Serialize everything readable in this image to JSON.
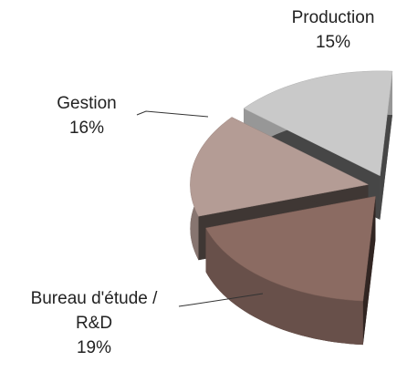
{
  "chart_data": {
    "type": "pie3d",
    "categories": [
      "Production",
      "Gestion",
      "Bureau d'étude / R&D"
    ],
    "values": [
      15,
      16,
      19
    ],
    "value_labels": [
      "15%",
      "16%",
      "19%"
    ],
    "colors": [
      "#c9c9c9",
      "#b49c95",
      "#8b6b62"
    ]
  }
}
